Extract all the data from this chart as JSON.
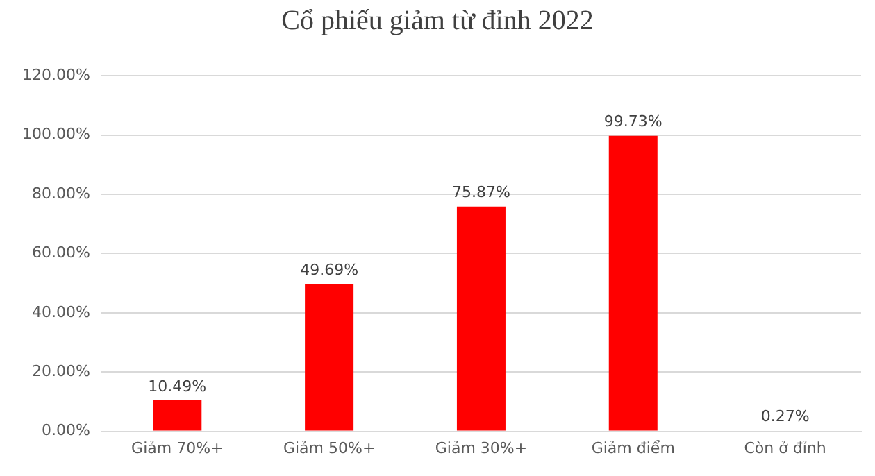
{
  "chart_data": {
    "type": "bar",
    "title": "Cổ phiếu giảm từ đỉnh 2022",
    "categories": [
      "Giảm 70%+",
      "Giảm 50%+",
      "Giảm 30%+",
      "Giảm điểm",
      "Còn ở đỉnh"
    ],
    "values": [
      10.49,
      49.69,
      75.87,
      99.73,
      0.27
    ],
    "colors": [
      "#ff0000",
      "#ff0000",
      "#ff0000",
      "#ff0000",
      "#70ad47"
    ],
    "value_labels": [
      "10.49%",
      "49.69%",
      "75.87%",
      "99.73%",
      "0.27%"
    ],
    "ylim": [
      0,
      120
    ],
    "yticks": [
      {
        "value": 0,
        "label": "0.00%"
      },
      {
        "value": 20,
        "label": "20.00%"
      },
      {
        "value": 40,
        "label": "40.00%"
      },
      {
        "value": 60,
        "label": "60.00%"
      },
      {
        "value": 80,
        "label": "80.00%"
      },
      {
        "value": 100,
        "label": "100.00%"
      },
      {
        "value": 120,
        "label": "120.00%"
      }
    ],
    "grid": "y",
    "legend": false
  }
}
